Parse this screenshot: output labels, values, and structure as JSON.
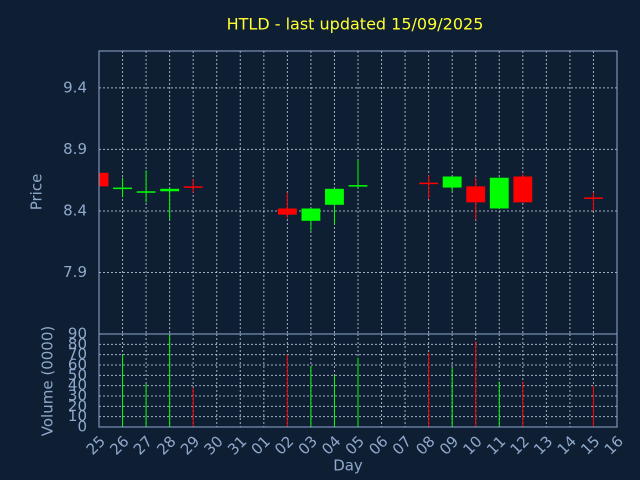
{
  "chart_data": {
    "type": "candlestick",
    "title": "HTLD - last updated 15/09/2025",
    "ylabel": "Price",
    "xlabel": "Day",
    "categories": [
      "25",
      "26",
      "27",
      "28",
      "29",
      "30",
      "31",
      "01",
      "02",
      "03",
      "04",
      "05",
      "06",
      "07",
      "08",
      "09",
      "10",
      "11",
      "12",
      "13",
      "14",
      "15",
      "16"
    ],
    "open": [
      8.71,
      8.58,
      8.55,
      8.56,
      8.6,
      null,
      null,
      null,
      8.42,
      8.32,
      8.45,
      8.6,
      null,
      null,
      8.63,
      8.59,
      8.6,
      8.42,
      8.68,
      null,
      null,
      8.51,
      null
    ],
    "high": [
      8.71,
      8.67,
      8.73,
      8.58,
      8.66,
      null,
      null,
      null,
      8.55,
      8.42,
      8.58,
      8.81,
      null,
      null,
      8.69,
      8.68,
      8.67,
      8.67,
      8.7,
      null,
      null,
      8.55,
      null
    ],
    "low": [
      8.6,
      8.51,
      8.47,
      8.33,
      8.55,
      null,
      null,
      null,
      8.34,
      8.24,
      8.29,
      8.59,
      null,
      null,
      8.5,
      8.56,
      8.33,
      8.42,
      8.47,
      null,
      null,
      8.4,
      null
    ],
    "close": [
      8.6,
      8.59,
      8.56,
      8.58,
      8.59,
      null,
      null,
      null,
      8.37,
      8.42,
      8.58,
      8.61,
      null,
      null,
      8.62,
      8.68,
      8.47,
      8.67,
      8.47,
      null,
      null,
      8.5,
      null
    ],
    "up_color": "#00ff00",
    "down_color": "#ff0000",
    "ylim": [
      7.4,
      9.7
    ],
    "yticks": [
      7.9,
      8.4,
      8.9,
      9.4
    ],
    "grid": true,
    "volume": {
      "label": "Volume (0000)",
      "values": [
        null,
        70,
        42,
        89,
        38,
        null,
        null,
        null,
        70,
        59,
        50,
        67,
        null,
        null,
        72,
        57,
        83,
        44,
        44,
        null,
        null,
        40,
        null
      ],
      "ylim": [
        0,
        90
      ],
      "yticks": [
        0,
        10,
        20,
        30,
        40,
        50,
        60,
        70,
        80,
        90
      ]
    }
  }
}
